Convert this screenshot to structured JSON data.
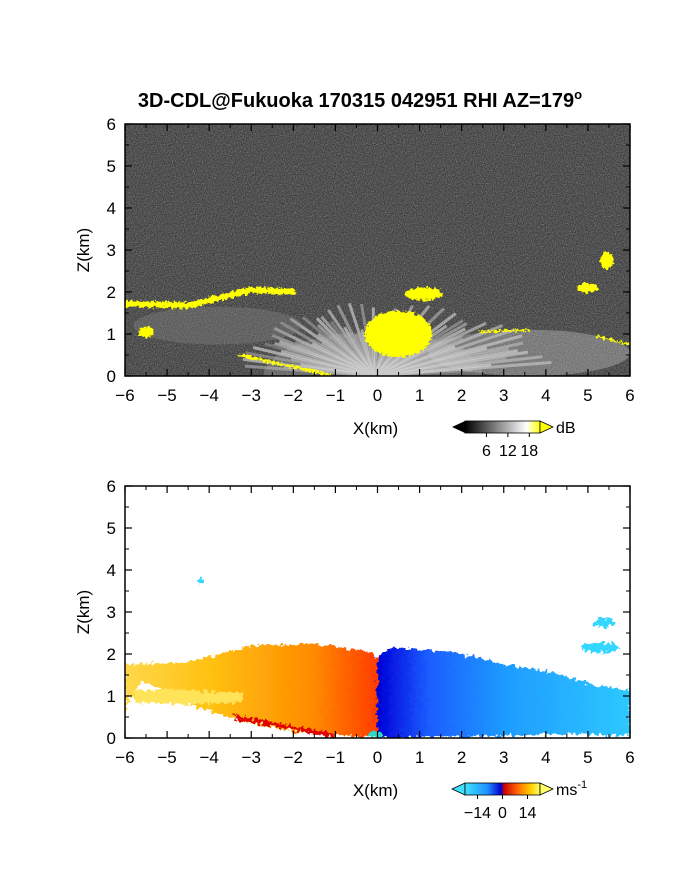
{
  "title": "3D-CDL@Fukuoka 170315 042951 RHI AZ=179",
  "title_superscript": "o",
  "chart_data": [
    {
      "type": "heatmap",
      "field": "backscatter",
      "xlabel": "X(km)",
      "ylabel": "Z(km)",
      "xlim": [
        -6,
        6
      ],
      "ylim": [
        0,
        6
      ],
      "xticks": [
        "-6",
        "-5",
        "-4",
        "-3",
        "-2",
        "-1",
        "0",
        "1",
        "2",
        "3",
        "4",
        "5",
        "6"
      ],
      "yticks": [
        "0",
        "1",
        "2",
        "3",
        "4",
        "5",
        "6"
      ],
      "colorbar": {
        "unit": "dB",
        "ticks": [
          "6",
          "12",
          "18"
        ],
        "range": [
          0,
          21
        ],
        "colors": [
          "#000000",
          "#ffffff",
          "#ffff00"
        ]
      },
      "features": [
        {
          "kind": "fan",
          "apex": [
            -0.1,
            0
          ],
          "angles_deg": [
            8,
            172
          ],
          "max_range_km": 3.2
        },
        {
          "kind": "yellow_layer",
          "points": [
            [
              -6,
              1.72
            ],
            [
              -4.5,
              1.68
            ],
            [
              -3,
              2.05
            ],
            [
              -2,
              2.0
            ]
          ]
        },
        {
          "kind": "yellow_blob",
          "center": [
            0.5,
            1.0
          ],
          "size": [
            1.6,
            1.1
          ]
        },
        {
          "kind": "yellow_blob",
          "center": [
            1.1,
            1.95
          ],
          "size": [
            0.9,
            0.3
          ]
        },
        {
          "kind": "yellow_blob",
          "center": [
            5.45,
            2.75
          ],
          "size": [
            0.3,
            0.4
          ]
        },
        {
          "kind": "yellow_blob",
          "center": [
            -5.5,
            1.05
          ],
          "size": [
            0.35,
            0.25
          ]
        }
      ]
    },
    {
      "type": "heatmap",
      "field": "radial_velocity",
      "xlabel": "X(km)",
      "ylabel": "Z(km)",
      "xlim": [
        -6,
        6
      ],
      "ylim": [
        0,
        6
      ],
      "xticks": [
        "-6",
        "-5",
        "-4",
        "-3",
        "-2",
        "-1",
        "0",
        "1",
        "2",
        "3",
        "4",
        "5",
        "6"
      ],
      "yticks": [
        "0",
        "1",
        "2",
        "3",
        "4",
        "5",
        "6"
      ],
      "colorbar": {
        "unit": "ms",
        "unit_superscript": "-1",
        "ticks": [
          "-14",
          "0",
          "14"
        ],
        "range": [
          -21,
          21
        ],
        "colors": [
          "#40e0ff",
          "#1e90ff",
          "#0000cc",
          "#cc0000",
          "#ff6600",
          "#ffd000",
          "#ffff66"
        ]
      },
      "features": [
        {
          "kind": "positive_region",
          "x_range": [
            -6,
            0
          ],
          "top_km": [
            1.75,
            2.25
          ],
          "velocity_ms": [
            6,
            18
          ]
        },
        {
          "kind": "negative_region",
          "x_range": [
            0,
            6
          ],
          "top_km": [
            2.1,
            1.0
          ],
          "velocity_ms": [
            -10,
            -16
          ]
        },
        {
          "kind": "isolated_echo",
          "center": [
            -4.2,
            3.75
          ],
          "velocity_ms": -16
        },
        {
          "kind": "isolated_echo",
          "center": [
            5.4,
            2.75
          ],
          "velocity_ms": -16
        }
      ]
    }
  ]
}
